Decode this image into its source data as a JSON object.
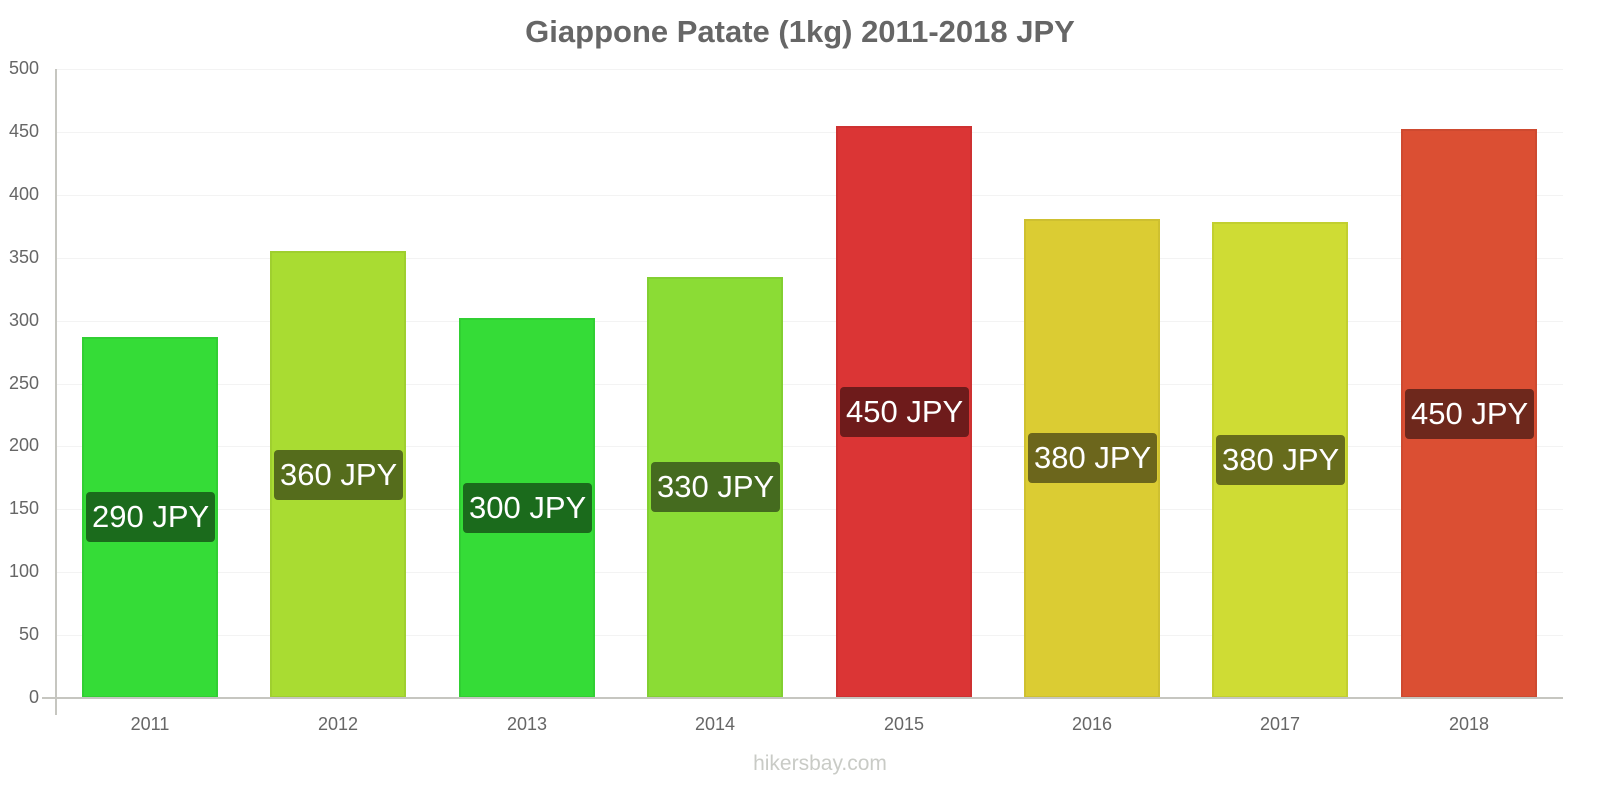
{
  "chart_data": {
    "type": "bar",
    "title": "Giappone Patate (1kg) 2011-2018 JPY",
    "xlabel": "",
    "ylabel": "",
    "ylim": [
      0,
      500
    ],
    "yticks": [
      "0",
      "50",
      "100",
      "150",
      "200",
      "250",
      "300",
      "350",
      "400",
      "450",
      "500"
    ],
    "grid": true,
    "legend": null,
    "categories": [
      "2011",
      "2012",
      "2013",
      "2014",
      "2015",
      "2016",
      "2017",
      "2018"
    ],
    "values": [
      287,
      355,
      302,
      335,
      455,
      381,
      378,
      452
    ],
    "data_labels": [
      "290 JPY",
      "360 JPY",
      "300 JPY",
      "330 JPY",
      "450 JPY",
      "380 JPY",
      "380 JPY",
      "450 JPY"
    ],
    "bar_colors": [
      "#35dc37",
      "#a9dc32",
      "#35dc37",
      "#8bdc35",
      "#db3535",
      "#dbcc33",
      "#cfdc34",
      "#db4f33"
    ],
    "label_colors": [
      "#1b6b1c",
      "#556c1c",
      "#1b6b1c",
      "#456b1f",
      "#6e1b1b",
      "#6c661c",
      "#676c1c",
      "#6e281c"
    ],
    "watermark": "hikersbay.com"
  }
}
